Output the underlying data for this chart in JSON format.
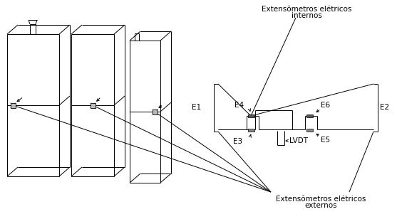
{
  "bg_color": "#ffffff",
  "line_color": "#000000",
  "label_internos_line1": "Extensômetros elétricos",
  "label_internos_line2": "internos",
  "label_externos_line1": "Extensômetros elétricos",
  "label_externos_line2": "externos",
  "label_E1": "E1",
  "label_E2": "E2",
  "label_E3": "E3",
  "label_E4": "E4",
  "label_E5": "E5",
  "label_E6": "E6",
  "label_LVDT": "LVDT",
  "figsize": [
    5.57,
    3.15
  ],
  "dpi": 100
}
